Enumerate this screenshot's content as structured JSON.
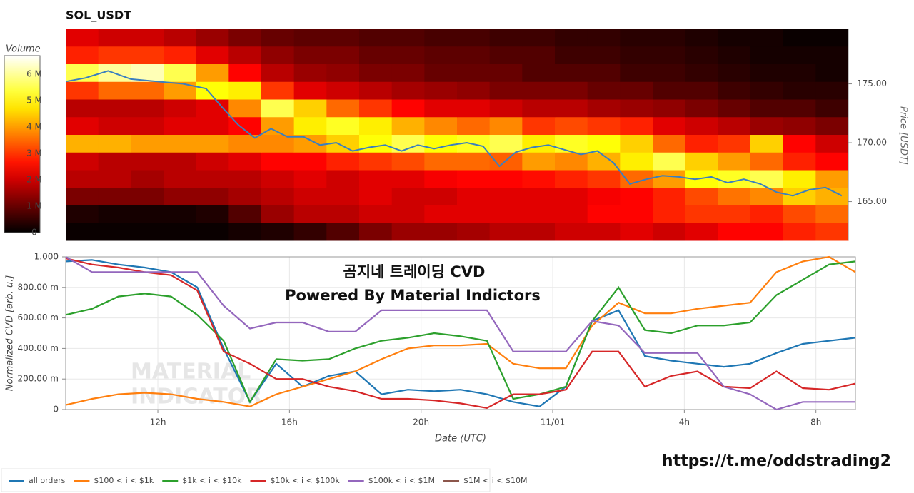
{
  "chart_data": [
    {
      "type": "heatmap",
      "title": "SOL_USDT",
      "colorbar_title": "Volume",
      "y2label": "Price [USDT]",
      "xlim": [
        9.2,
        33.2
      ],
      "ylim": [
        161.7,
        179.7
      ],
      "yticks": [
        {
          "value": 165,
          "label": "165.00"
        },
        {
          "value": 170,
          "label": "170.00"
        },
        {
          "value": 175,
          "label": "175.00"
        }
      ],
      "zlim": [
        0,
        6700000
      ],
      "zticks": [
        0,
        {
          "value": 1000000,
          "label": "1 M"
        },
        {
          "value": 2000000,
          "label": "2 M"
        },
        {
          "value": 3000000,
          "label": "3 M"
        },
        {
          "value": 4000000,
          "label": "4 M"
        },
        {
          "value": 5000000,
          "label": "5 M"
        },
        {
          "value": 6000000,
          "label": "6 M"
        }
      ],
      "x_bins": [
        9.2,
        10.2,
        11.2,
        12.2,
        13.2,
        14.2,
        15.2,
        16.2,
        17.2,
        18.2,
        19.2,
        20.2,
        21.2,
        22.2,
        23.2,
        24.2,
        25.2,
        26.2,
        27.2,
        28.2,
        29.2,
        30.2,
        31.2,
        32.2,
        33.2
      ],
      "y_bins": [
        161.7,
        163.2,
        164.7,
        166.2,
        167.7,
        169.2,
        170.7,
        172.2,
        173.7,
        175.2,
        176.7,
        178.2,
        179.7
      ],
      "matrix": [
        [
          100000,
          100000,
          100000,
          100000,
          100000,
          200000,
          300000,
          500000,
          800000,
          1200000,
          1500000,
          1500000,
          1600000,
          1800000,
          1800000,
          2000000,
          2000000,
          2200000,
          2000000,
          2200000,
          2500000,
          2500000,
          2800000,
          3000000
        ],
        [
          300000,
          200000,
          200000,
          200000,
          300000,
          800000,
          1500000,
          1800000,
          1800000,
          2000000,
          2000000,
          2200000,
          2200000,
          2200000,
          2200000,
          2200000,
          2500000,
          2500000,
          2800000,
          3000000,
          3000000,
          2800000,
          3200000,
          3500000
        ],
        [
          1200000,
          1200000,
          1200000,
          1400000,
          1400000,
          1600000,
          1800000,
          2000000,
          2000000,
          2200000,
          2000000,
          2000000,
          2200000,
          2200000,
          2200000,
          2200000,
          2400000,
          2500000,
          2800000,
          3200000,
          3600000,
          3800000,
          4500000,
          4200000
        ],
        [
          1800000,
          1800000,
          1600000,
          1800000,
          1800000,
          1800000,
          2000000,
          2200000,
          2000000,
          2200000,
          2200000,
          2400000,
          2500000,
          2500000,
          2600000,
          2800000,
          3000000,
          3500000,
          4000000,
          5000000,
          5200000,
          5500000,
          4800000,
          4000000
        ],
        [
          2000000,
          1800000,
          1800000,
          1800000,
          2000000,
          2200000,
          2500000,
          2500000,
          2800000,
          3000000,
          3200000,
          3500000,
          3500000,
          3400000,
          4000000,
          3800000,
          4200000,
          4800000,
          5500000,
          4500000,
          4000000,
          3500000,
          2800000,
          2500000
        ],
        [
          4200000,
          4200000,
          4000000,
          4000000,
          4000000,
          3800000,
          3800000,
          4000000,
          4500000,
          5000000,
          5500000,
          5000000,
          5200000,
          5500000,
          4800000,
          5200000,
          5000000,
          4500000,
          3500000,
          2800000,
          3000000,
          4500000,
          2500000,
          2000000
        ],
        [
          2200000,
          2000000,
          2000000,
          2200000,
          2200000,
          2500000,
          4000000,
          4800000,
          5200000,
          4800000,
          4200000,
          3800000,
          3500000,
          3800000,
          3000000,
          3200000,
          3000000,
          2800000,
          2200000,
          2000000,
          1800000,
          1500000,
          1400000,
          1200000
        ],
        [
          1800000,
          1800000,
          1800000,
          2000000,
          2200000,
          3800000,
          5500000,
          4500000,
          3500000,
          3000000,
          2500000,
          2200000,
          2200000,
          2000000,
          1800000,
          1800000,
          1600000,
          1500000,
          1400000,
          1200000,
          1000000,
          800000,
          800000,
          600000
        ],
        [
          3000000,
          3500000,
          3500000,
          4000000,
          5000000,
          4800000,
          3000000,
          2200000,
          2000000,
          1800000,
          1600000,
          1500000,
          1400000,
          1200000,
          1200000,
          1200000,
          1000000,
          1000000,
          800000,
          800000,
          600000,
          500000,
          400000,
          400000
        ],
        [
          5500000,
          6000000,
          6200000,
          5500000,
          4000000,
          2500000,
          1800000,
          1500000,
          1400000,
          1200000,
          1200000,
          1000000,
          1000000,
          1000000,
          800000,
          800000,
          800000,
          600000,
          600000,
          500000,
          400000,
          300000,
          300000,
          200000
        ],
        [
          2800000,
          3000000,
          3000000,
          2800000,
          2200000,
          1800000,
          1400000,
          1200000,
          1200000,
          1000000,
          1000000,
          900000,
          900000,
          800000,
          800000,
          600000,
          600000,
          500000,
          500000,
          400000,
          300000,
          200000,
          200000,
          200000
        ],
        [
          2200000,
          2000000,
          2000000,
          1800000,
          1500000,
          1200000,
          1000000,
          900000,
          900000,
          800000,
          800000,
          700000,
          700000,
          600000,
          600000,
          500000,
          500000,
          400000,
          400000,
          300000,
          200000,
          200000,
          100000,
          100000
        ]
      ],
      "price": {
        "color": "#3a7fc0",
        "x": [
          9.2,
          9.8,
          10.5,
          11.2,
          12,
          12.8,
          13.5,
          14,
          14.5,
          15,
          15.5,
          16,
          16.5,
          17,
          17.5,
          18,
          18.5,
          19,
          19.5,
          20,
          20.5,
          21,
          21.5,
          22,
          22.5,
          23,
          23.5,
          24,
          24.5,
          25,
          25.5,
          26,
          26.5,
          27,
          27.5,
          28,
          28.5,
          29,
          29.5,
          30,
          30.5,
          31,
          31.5,
          32,
          32.5,
          33
        ],
        "values": [
          175.2,
          175.5,
          176.1,
          175.4,
          175.2,
          175,
          174.6,
          173,
          171.5,
          170.4,
          171.2,
          170.5,
          170.5,
          169.8,
          170,
          169.3,
          169.6,
          169.8,
          169.3,
          169.8,
          169.5,
          169.8,
          170,
          169.7,
          168,
          169.2,
          169.6,
          169.8,
          169.4,
          169,
          169.3,
          168.3,
          166.5,
          166.9,
          167.2,
          167.1,
          166.9,
          167.1,
          166.6,
          166.9,
          166.5,
          165.8,
          165.5,
          166,
          166.2,
          165.5
        ]
      }
    },
    {
      "type": "line",
      "ylabel": "Normalized CVD [arb. u.]",
      "xlabel": "Date (UTC)",
      "annotations": [
        "곰지네 트레이딩 CVD",
        "Powered By Material Indictors"
      ],
      "watermark": [
        "MATERIAL",
        "INDICATOR"
      ],
      "xlim": [
        9.2,
        33.2
      ],
      "ylim": [
        0,
        1
      ],
      "grid": true,
      "legend": "bottom-left",
      "xticks": [
        {
          "value": 12,
          "label": "12h"
        },
        {
          "value": 16,
          "label": "16h"
        },
        {
          "value": 20,
          "label": "20h"
        },
        {
          "value": 24,
          "label": "11/01"
        },
        {
          "value": 28,
          "label": "4h"
        },
        {
          "value": 32,
          "label": "8h"
        }
      ],
      "yticks": [
        0,
        {
          "value": 0.2,
          "label": "200.00 m"
        },
        {
          "value": 0.4,
          "label": "400.00 m"
        },
        {
          "value": 0.6,
          "label": "600.00 m"
        },
        {
          "value": 0.8,
          "label": "800.00 m"
        },
        {
          "value": 1,
          "label": "1.000"
        }
      ],
      "x": [
        9.2,
        10,
        10.8,
        11.6,
        12.4,
        13.2,
        14,
        14.8,
        15.6,
        16.4,
        17.2,
        18,
        18.8,
        19.6,
        20.4,
        21.2,
        22,
        22.8,
        23.6,
        24.4,
        25.2,
        26,
        26.8,
        27.6,
        28.4,
        29.2,
        30,
        30.8,
        31.6,
        32.4,
        33.2
      ],
      "series": [
        {
          "name": "all orders",
          "color": "#1f77b4",
          "values": [
            0.97,
            0.98,
            0.95,
            0.93,
            0.9,
            0.8,
            0.4,
            0.05,
            0.3,
            0.15,
            0.22,
            0.25,
            0.1,
            0.13,
            0.12,
            0.13,
            0.1,
            0.05,
            0.02,
            0.15,
            0.58,
            0.65,
            0.35,
            0.32,
            0.3,
            0.28,
            0.3,
            0.37,
            0.43,
            0.45,
            0.47
          ]
        },
        {
          "name": "$100 < i < $1k",
          "color": "#ff7f0e",
          "values": [
            0.03,
            0.07,
            0.1,
            0.11,
            0.1,
            0.07,
            0.05,
            0.02,
            0.1,
            0.15,
            0.2,
            0.25,
            0.33,
            0.4,
            0.42,
            0.42,
            0.43,
            0.3,
            0.27,
            0.27,
            0.55,
            0.7,
            0.63,
            0.63,
            0.66,
            0.68,
            0.7,
            0.9,
            0.97,
            1.0,
            0.9
          ]
        },
        {
          "name": "$1k < i < $10k",
          "color": "#2ca02c",
          "values": [
            0.62,
            0.66,
            0.74,
            0.76,
            0.74,
            0.62,
            0.45,
            0.05,
            0.33,
            0.32,
            0.33,
            0.4,
            0.45,
            0.47,
            0.5,
            0.48,
            0.45,
            0.07,
            0.1,
            0.15,
            0.58,
            0.8,
            0.52,
            0.5,
            0.55,
            0.55,
            0.57,
            0.75,
            0.85,
            0.95,
            0.97
          ]
        },
        {
          "name": "$10k < i < $100k",
          "color": "#d62728",
          "values": [
            0.99,
            0.95,
            0.93,
            0.9,
            0.88,
            0.78,
            0.38,
            0.3,
            0.2,
            0.2,
            0.15,
            0.12,
            0.07,
            0.07,
            0.06,
            0.04,
            0.01,
            0.1,
            0.1,
            0.13,
            0.38,
            0.38,
            0.15,
            0.22,
            0.25,
            0.15,
            0.14,
            0.25,
            0.14,
            0.13,
            0.17
          ]
        },
        {
          "name": "$100k < i < $1M",
          "color": "#9467bd",
          "values": [
            1.0,
            0.9,
            0.9,
            0.9,
            0.9,
            0.9,
            0.68,
            0.53,
            0.57,
            0.57,
            0.51,
            0.51,
            0.65,
            0.65,
            0.65,
            0.65,
            0.65,
            0.38,
            0.38,
            0.38,
            0.58,
            0.55,
            0.37,
            0.37,
            0.37,
            0.15,
            0.1,
            0.0,
            0.05,
            0.05,
            0.05
          ]
        },
        {
          "name": "$1M < i < $10M",
          "color": "#8c564b",
          "values": [
            null,
            null,
            null,
            null,
            null,
            null,
            null,
            null,
            null,
            null,
            null,
            null,
            null,
            null,
            null,
            null,
            null,
            null,
            null,
            null,
            null,
            null,
            null,
            null,
            null,
            null,
            null,
            null,
            null,
            null,
            null
          ]
        }
      ]
    }
  ],
  "link": "https://t.me/oddstrading2"
}
